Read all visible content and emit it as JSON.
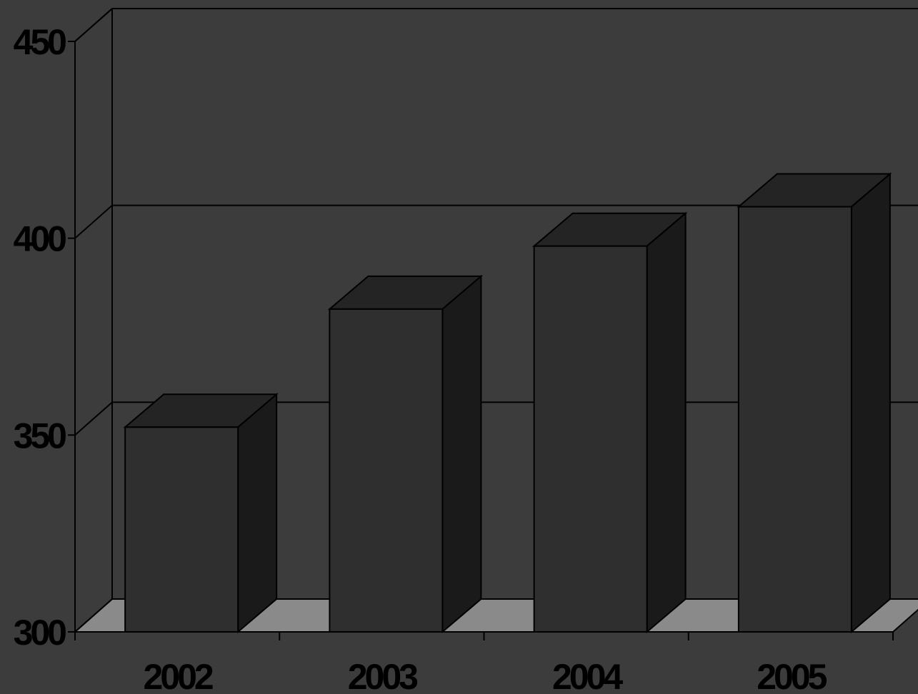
{
  "chart_data": {
    "type": "bar",
    "three_d": true,
    "categories": [
      "2002",
      "2003",
      "2004",
      "2005"
    ],
    "values": [
      352,
      382,
      398,
      408
    ],
    "ylim": [
      300,
      450
    ],
    "yticks": [
      "300",
      "350",
      "400",
      "450"
    ],
    "grid": true,
    "colors": {
      "background": "#3c3c3c",
      "bar_front": "#2f2f2f",
      "bar_top": "#242424",
      "bar_side": "#1a1a1a",
      "floor": "#8a8a8a",
      "lines": "#000000"
    }
  }
}
